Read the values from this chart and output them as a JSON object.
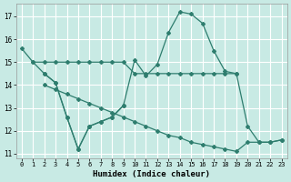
{
  "xlabel": "Humidex (Indice chaleur)",
  "background_color": "#c8eae4",
  "grid_color": "#ffffff",
  "line_color": "#2e7d6e",
  "xlim": [
    -0.5,
    23.5
  ],
  "ylim": [
    10.8,
    17.55
  ],
  "yticks": [
    11,
    12,
    13,
    14,
    15,
    16,
    17
  ],
  "xticks": [
    0,
    1,
    2,
    3,
    4,
    5,
    6,
    7,
    8,
    9,
    10,
    11,
    12,
    13,
    14,
    15,
    16,
    17,
    18,
    19,
    20,
    21,
    22,
    23
  ],
  "series": [
    {
      "x": [
        0,
        1,
        2,
        3,
        4,
        5,
        6,
        7,
        8,
        9,
        10,
        11,
        12,
        13,
        14,
        15,
        16,
        17,
        18,
        19,
        20,
        21,
        22,
        23
      ],
      "y": [
        15.6,
        15.0,
        14.5,
        14.1,
        12.6,
        11.2,
        12.2,
        12.4,
        12.6,
        13.1,
        15.1,
        14.4,
        14.9,
        16.3,
        17.2,
        17.1,
        16.7,
        15.5,
        14.6,
        14.5,
        12.2,
        11.5,
        11.5,
        11.6
      ]
    },
    {
      "x": [
        1,
        2,
        3,
        4,
        5,
        6,
        7,
        8,
        9,
        10,
        11,
        12,
        13,
        14,
        15,
        16,
        17,
        18,
        19
      ],
      "y": [
        15.0,
        15.0,
        15.0,
        15.0,
        15.0,
        15.0,
        15.0,
        15.0,
        15.0,
        14.5,
        14.5,
        14.5,
        14.5,
        14.5,
        14.5,
        14.5,
        14.5,
        14.5,
        14.5
      ]
    },
    {
      "x": [
        2,
        3,
        4,
        5,
        6,
        7,
        8,
        9
      ],
      "y": [
        14.5,
        14.1,
        12.6,
        11.2,
        12.2,
        12.4,
        12.6,
        13.1
      ]
    },
    {
      "x": [
        2,
        3,
        4,
        5,
        6,
        7,
        8,
        9,
        10,
        11,
        12,
        13,
        14,
        15,
        16,
        17,
        18,
        19,
        20,
        21,
        22,
        23
      ],
      "y": [
        14.0,
        13.8,
        13.6,
        13.4,
        13.2,
        13.0,
        12.8,
        12.6,
        12.4,
        12.2,
        12.0,
        11.8,
        11.7,
        11.5,
        11.4,
        11.3,
        11.2,
        11.1,
        11.5,
        11.5,
        11.5,
        11.6
      ]
    }
  ]
}
